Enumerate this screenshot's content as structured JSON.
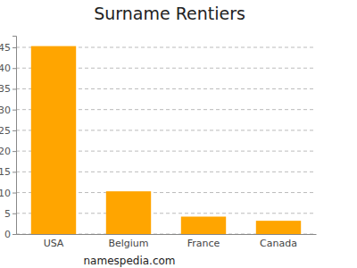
{
  "chart_data": {
    "type": "bar",
    "title": "Surname Rentiers",
    "categories": [
      "USA",
      "Belgium",
      "France",
      "Canada"
    ],
    "values": [
      45.3,
      10.3,
      4.2,
      3.2
    ],
    "color": "#ffa500",
    "ylim": [
      0,
      47.8
    ],
    "yticks": [
      0,
      5,
      10,
      15,
      20,
      25,
      30,
      35,
      40,
      45
    ],
    "grid": true,
    "annotations": [
      "namespedia.com"
    ]
  }
}
